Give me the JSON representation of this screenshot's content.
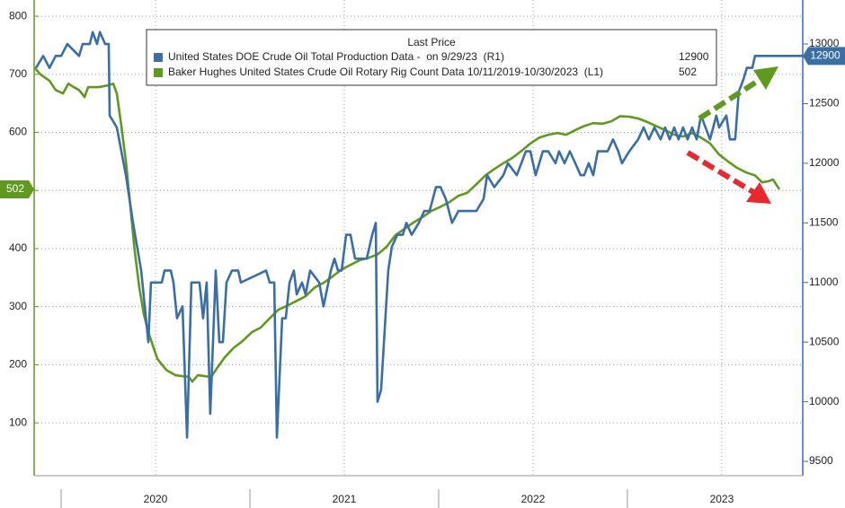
{
  "chart_data": {
    "type": "line",
    "legend_heading": "Last Price",
    "xlim": [
      2019.857,
      2023.929
    ],
    "xticks": [
      {
        "value": 2020.5,
        "label": "2020"
      },
      {
        "value": 2021.5,
        "label": "2021"
      },
      {
        "value": 2022.5,
        "label": "2022"
      },
      {
        "value": 2023.5,
        "label": "2023"
      }
    ],
    "ylim": [
      9,
      828
    ],
    "yticks": [
      100,
      200,
      300,
      400,
      500,
      600,
      700,
      800
    ],
    "y2lim": [
      9380,
      13369
    ],
    "y2ticks": [
      9500,
      10000,
      10500,
      11000,
      11500,
      12000,
      12500,
      13000
    ],
    "grid": true,
    "series": [
      {
        "name": "United States DOE Crude Oil Total Production Data -  on 9/29/23  (R1)",
        "color": "#3a6ea5",
        "axis": "y2",
        "x": [
          2019.867,
          2019.905,
          2019.938,
          2019.971,
          2020.0,
          2020.033,
          2020.095,
          2020.114,
          2020.152,
          2020.167,
          2020.19,
          2020.205,
          2020.233,
          2020.252,
          2020.257,
          2020.295,
          2020.343,
          2020.381,
          2020.424,
          2020.462,
          2020.476,
          2020.533,
          2020.548,
          2020.581,
          2020.595,
          2020.614,
          2020.643,
          2020.667,
          2020.69,
          2020.733,
          2020.752,
          2020.771,
          2020.79,
          2020.819,
          2020.838,
          2020.857,
          2020.876,
          2020.905,
          2020.938,
          2020.952,
          2021.086,
          2021.105,
          2021.129,
          2021.143,
          2021.171,
          2021.19,
          2021.21,
          2021.233,
          2021.248,
          2021.276,
          2021.295,
          2021.319,
          2021.367,
          2021.39,
          2021.429,
          2021.448,
          2021.467,
          2021.486,
          2021.51,
          2021.533,
          2021.557,
          2021.619,
          2021.648,
          2021.667,
          2021.676,
          2021.695,
          2021.733,
          2021.752,
          2021.781,
          2021.81,
          2021.829,
          2021.857,
          2021.895,
          2021.924,
          2021.952,
          2021.986,
          2022.01,
          2022.038,
          2022.071,
          2022.105,
          2022.2,
          2022.238,
          2022.257,
          2022.295,
          2022.343,
          2022.367,
          2022.414,
          2022.462,
          2022.486,
          2022.514,
          2022.552,
          2022.581,
          2022.619,
          2022.638,
          2022.667,
          2022.695,
          2022.724,
          2022.752,
          2022.771,
          2022.795,
          2022.819,
          2022.843,
          2022.895,
          2022.924,
          2022.952,
          2022.971,
          2023.01,
          2023.057,
          2023.086,
          2023.114,
          2023.143,
          2023.176,
          2023.2,
          2023.224,
          2023.248,
          2023.271,
          2023.295,
          2023.319,
          2023.343,
          2023.367,
          2023.39,
          2023.414,
          2023.438,
          2023.471,
          2023.486,
          2023.524,
          2023.543,
          2023.571,
          2023.59,
          2023.614,
          2023.633,
          2023.662,
          2023.676,
          2023.929
        ],
        "values": [
          12800,
          12900,
          12800,
          12900,
          12900,
          13000,
          12900,
          13000,
          13000,
          13100,
          13000,
          13100,
          13000,
          13000,
          12400,
          12300,
          11900,
          11500,
          11100,
          10500,
          11000,
          11000,
          11100,
          11100,
          11000,
          10700,
          10800,
          9700,
          11000,
          11000,
          10700,
          11000,
          9900,
          11100,
          10500,
          10500,
          11000,
          11100,
          11100,
          11000,
          11100,
          11000,
          11000,
          9700,
          10700,
          10700,
          11000,
          11100,
          10900,
          11000,
          10900,
          11100,
          11000,
          10800,
          11100,
          11200,
          11100,
          11100,
          11400,
          11400,
          11200,
          11200,
          11400,
          11500,
          10000,
          10100,
          11100,
          11300,
          11400,
          11400,
          11500,
          11400,
          11500,
          11600,
          11600,
          11800,
          11800,
          11700,
          11500,
          11600,
          11600,
          11700,
          11900,
          11800,
          11900,
          12000,
          11900,
          12100,
          12100,
          11900,
          12100,
          12100,
          12000,
          12100,
          12000,
          12100,
          12000,
          11900,
          11900,
          12000,
          11900,
          12100,
          12100,
          12200,
          12100,
          12000,
          12100,
          12200,
          12300,
          12200,
          12300,
          12200,
          12300,
          12200,
          12300,
          12200,
          12300,
          12200,
          12300,
          12200,
          12400,
          12300,
          12200,
          12400,
          12300,
          12400,
          12200,
          12200,
          12600,
          12700,
          12800,
          12800,
          12900,
          12900
        ]
      },
      {
        "name": "Baker Hughes United States Crude Oil Rotary Rig Count Data 10/11/2019-10/30/2023  (L1)",
        "color": "#5f9a1e",
        "x": [
          2019.857,
          2019.89,
          2019.938,
          2019.971,
          2020.01,
          2020.038,
          2020.067,
          2020.095,
          2020.124,
          2020.143,
          2020.2,
          2020.248,
          2020.276,
          2020.295,
          2020.319,
          2020.343,
          2020.367,
          2020.39,
          2020.414,
          2020.438,
          2020.462,
          2020.51,
          2020.557,
          2020.605,
          2020.676,
          2020.695,
          2020.724,
          2020.795,
          2020.819,
          2020.867,
          2020.914,
          2020.962,
          2021.01,
          2021.057,
          2021.105,
          2021.152,
          2021.2,
          2021.248,
          2021.295,
          2021.343,
          2021.39,
          2021.438,
          2021.486,
          2021.533,
          2021.581,
          2021.629,
          2021.676,
          2021.724,
          2021.771,
          2021.819,
          2021.867,
          2021.914,
          2021.962,
          2022.01,
          2022.057,
          2022.105,
          2022.152,
          2022.2,
          2022.248,
          2022.295,
          2022.343,
          2022.39,
          2022.438,
          2022.486,
          2022.533,
          2022.581,
          2022.629,
          2022.676,
          2022.724,
          2022.771,
          2022.819,
          2022.867,
          2022.914,
          2022.962,
          2023.01,
          2023.057,
          2023.105,
          2023.152,
          2023.2,
          2023.248,
          2023.295,
          2023.343,
          2023.39,
          2023.438,
          2023.486,
          2023.533,
          2023.581,
          2023.629,
          2023.676,
          2023.714,
          2023.748,
          2023.771,
          2023.805
        ],
        "values": [
          712,
          700,
          689,
          673,
          667,
          684,
          678,
          673,
          661,
          678,
          678,
          681,
          684,
          667,
          611,
          550,
          472,
          395,
          333,
          287,
          256,
          210,
          191,
          182,
          179,
          171,
          182,
          179,
          191,
          213,
          229,
          241,
          256,
          264,
          280,
          295,
          302,
          310,
          318,
          333,
          341,
          352,
          364,
          372,
          380,
          384,
          390,
          403,
          423,
          434,
          445,
          454,
          465,
          472,
          480,
          491,
          496,
          511,
          526,
          537,
          547,
          556,
          568,
          581,
          591,
          596,
          599,
          596,
          604,
          611,
          616,
          615,
          619,
          628,
          627,
          624,
          618,
          611,
          604,
          596,
          593,
          599,
          591,
          581,
          562,
          550,
          539,
          531,
          526,
          514,
          516,
          519,
          502
        ]
      }
    ]
  }
}
